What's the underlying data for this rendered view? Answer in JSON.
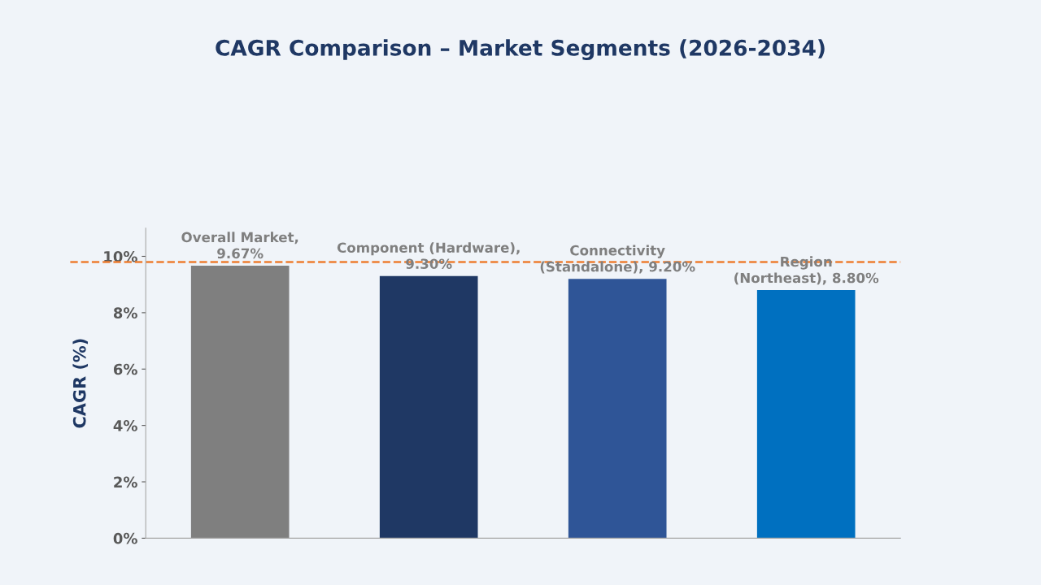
{
  "chart_data": {
    "type": "bar",
    "title": "CAGR Comparison – Market Segments (2026-2034)",
    "ylabel": "CAGR (%)",
    "categories": [
      null,
      null,
      null,
      null
    ],
    "values": [
      9.67,
      9.3,
      9.2,
      8.8
    ],
    "colors": [
      "#7f7f7f",
      "#1f3864",
      "#2f5597",
      "#0070c0"
    ],
    "value_labels": [
      "Overall Market,\n9.67%",
      "Component (Hardware),\n9.30%",
      "Connectivity\n(Standalone), 9.20%",
      "Region\n(Northeast), 8.80%"
    ],
    "ylim": [
      0,
      11
    ],
    "yticks": [
      {
        "value": 0,
        "label": "0%"
      },
      {
        "value": 2,
        "label": "2%"
      },
      {
        "value": 4,
        "label": "4%"
      },
      {
        "value": 6,
        "label": "6%"
      },
      {
        "value": 8,
        "label": "8%"
      },
      {
        "value": 10,
        "label": "10%"
      }
    ],
    "ref_lines": [
      {
        "axis": "y",
        "value": 9.8,
        "label": null,
        "color": "#ed7d31",
        "line_style": "dashed"
      }
    ],
    "grid": false,
    "legend": false
  }
}
